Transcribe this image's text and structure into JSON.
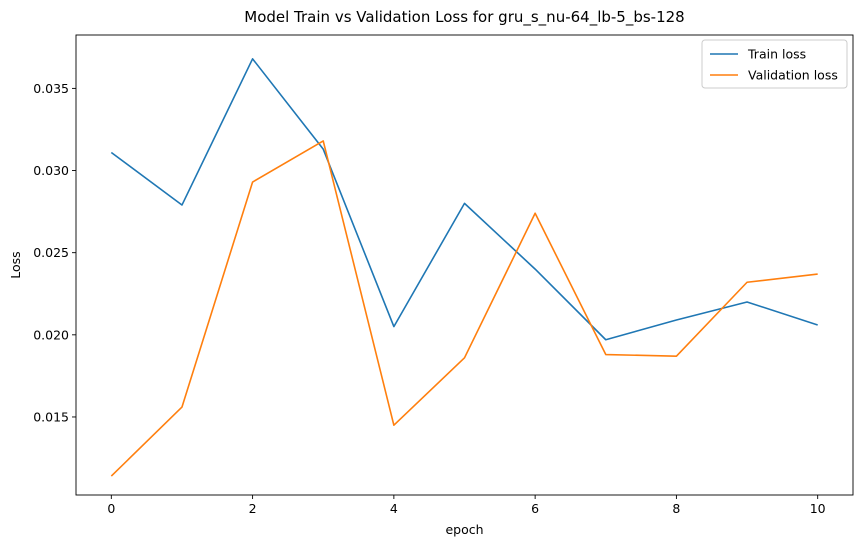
{
  "chart_data": {
    "type": "line",
    "title": "Model Train vs Validation Loss for gru_s_nu-64_lb-5_bs-128",
    "xlabel": "epoch",
    "ylabel": "Loss",
    "xlim": [
      -0.5,
      10.5
    ],
    "ylim": [
      0.01025,
      0.03825
    ],
    "xticks": [
      0,
      2,
      4,
      6,
      8,
      10
    ],
    "yticks": [
      0.015,
      0.02,
      0.025,
      0.03,
      0.035
    ],
    "ytick_labels": [
      "0.015",
      "0.020",
      "0.025",
      "0.030",
      "0.035"
    ],
    "grid": false,
    "legend_position": "top-right",
    "x": [
      0,
      1,
      2,
      3,
      4,
      5,
      6,
      7,
      8,
      9,
      10
    ],
    "series": [
      {
        "name": "Train loss",
        "color": "#1f77b4",
        "values": [
          0.0311,
          0.0279,
          0.0368,
          0.0313,
          0.0205,
          0.028,
          0.024,
          0.0197,
          0.0209,
          0.022,
          0.0206
        ]
      },
      {
        "name": "Validation loss",
        "color": "#ff7f0e",
        "values": [
          0.0114,
          0.0156,
          0.0293,
          0.0318,
          0.0145,
          0.0186,
          0.0274,
          0.0188,
          0.0187,
          0.0232,
          0.0237
        ]
      }
    ]
  }
}
